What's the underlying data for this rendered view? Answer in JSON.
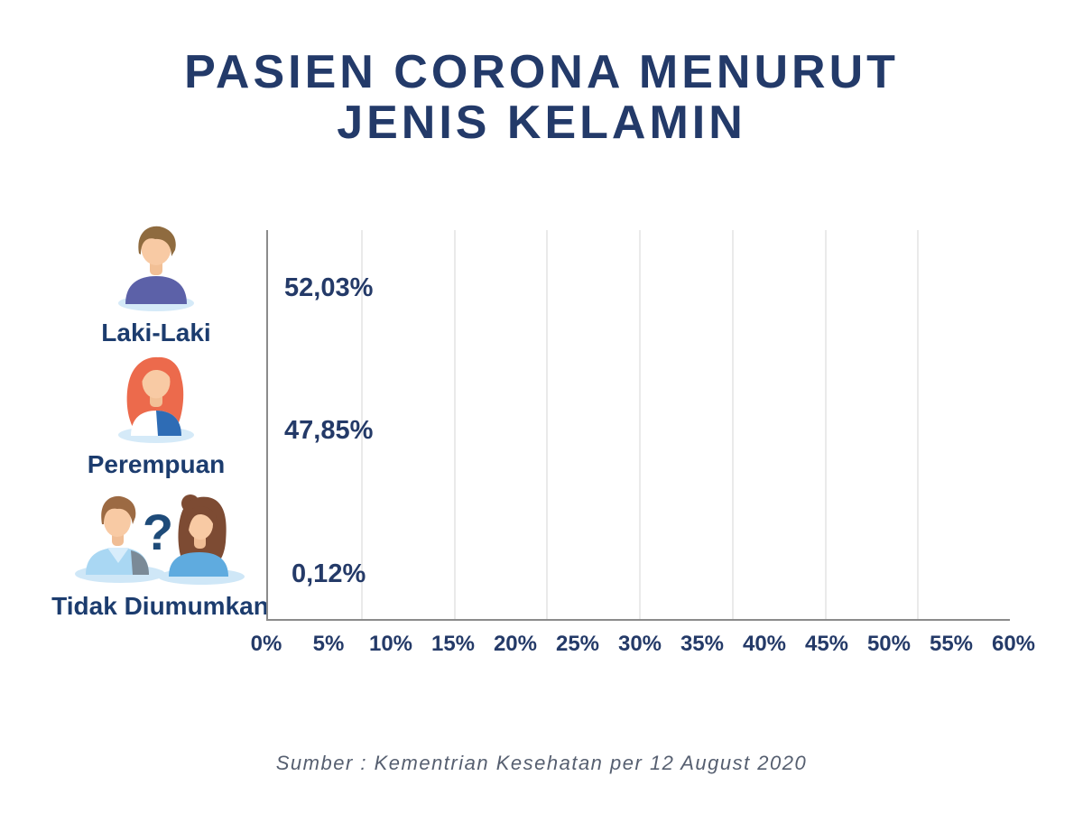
{
  "title": {
    "line1": "PASIEN CORONA MENURUT",
    "line2": "JENIS KELAMIN"
  },
  "chart_data": {
    "type": "bar",
    "orientation": "horizontal",
    "title": "PASIEN CORONA MENURUT JENIS KELAMIN",
    "categories": [
      "Laki-Laki",
      "Perempuan",
      "Tidak Diumumkan"
    ],
    "values": [
      52.03,
      47.85,
      0.12
    ],
    "value_labels": [
      "52,03%",
      "47,85%",
      "0,12%"
    ],
    "bar_colors": [
      "#14567e",
      "#fc4067",
      "#f2b227"
    ],
    "x_tick_labels": [
      "0%",
      "5%",
      "10%",
      "15%",
      "20%",
      "25%",
      "30%",
      "35%",
      "40%",
      "45%",
      "50%",
      "55%",
      "60%"
    ],
    "xlim": [
      0,
      60
    ],
    "grid": "vertical gridlines, 8 equal divisions of plot width",
    "legend": "none",
    "source": "Sumber : Kementrian Kesehatan per 12 August 2020"
  },
  "rows": [
    {
      "label": "Laki-Laki",
      "value_label": "52,03%",
      "icon": "male-avatar"
    },
    {
      "label": "Perempuan",
      "value_label": "47,85%",
      "icon": "female-avatar"
    },
    {
      "label": "Tidak Diumumkan",
      "value_label": "0,12%",
      "icon": "unknown-gender-avatars"
    }
  ],
  "icons": {
    "question_mark": "?"
  },
  "footer": {
    "source": "Sumber : Kementrian Kesehatan per 12 August 2020"
  },
  "colors": {
    "title_text": "#233a69",
    "label_text": "#1c3c6e",
    "value_text": "#243a68",
    "axis_line": "#8b8b8b",
    "gridline": "#eaeaea",
    "source_text": "#565f70",
    "bar_male": "#14567e",
    "bar_female": "#fc4067",
    "bar_unknown": "#f2b227"
  }
}
